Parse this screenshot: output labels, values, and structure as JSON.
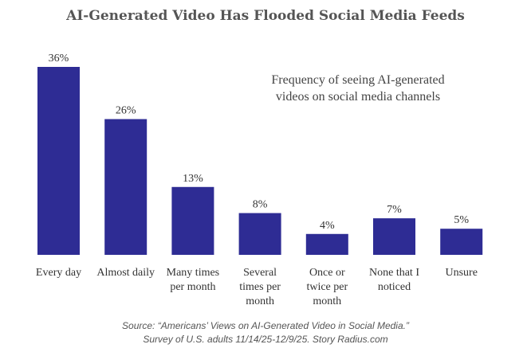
{
  "chart_data": {
    "type": "bar",
    "title": "AI-Generated Video Has Flooded Social Media Feeds",
    "subtitle_lines": [
      "Frequency of seeing AI-generated",
      "videos on social media channels"
    ],
    "categories": [
      [
        "Every day"
      ],
      [
        "Almost daily"
      ],
      [
        "Many times",
        "per month"
      ],
      [
        "Several",
        "times per",
        "month"
      ],
      [
        "Once or",
        "twice per",
        "month"
      ],
      [
        "None that I",
        "noticed"
      ],
      [
        "Unsure"
      ]
    ],
    "values": [
      36,
      26,
      13,
      8,
      4,
      7,
      5
    ],
    "value_labels": [
      "36%",
      "26%",
      "13%",
      "8%",
      "4%",
      "7%",
      "5%"
    ],
    "ylim": [
      0,
      36
    ],
    "bar_color": "#2e2c94",
    "grid": false
  },
  "footer": {
    "line1": "Source: “Americans’ Views on AI-Generated Video in Social Media.”",
    "line2": "Survey of U.S. adults 11/14/25-12/9/25. Story Radius.com"
  }
}
